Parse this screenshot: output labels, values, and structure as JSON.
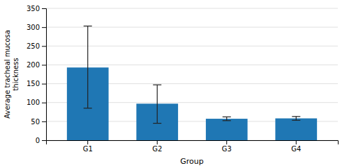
{
  "chart_data": {
    "type": "bar",
    "categories": [
      "G1",
      "G2",
      "G3",
      "G4"
    ],
    "values": [
      193,
      97,
      57,
      58
    ],
    "errors_lower": [
      108,
      52,
      5,
      5
    ],
    "errors_upper": [
      110,
      50,
      5,
      5
    ],
    "xlabel": "Group",
    "ylabel": "Average tracheal mucosa\nthickness",
    "ylim": [
      0,
      350
    ],
    "yticks": [
      0,
      50,
      100,
      150,
      200,
      250,
      300,
      350
    ],
    "grid": true
  }
}
